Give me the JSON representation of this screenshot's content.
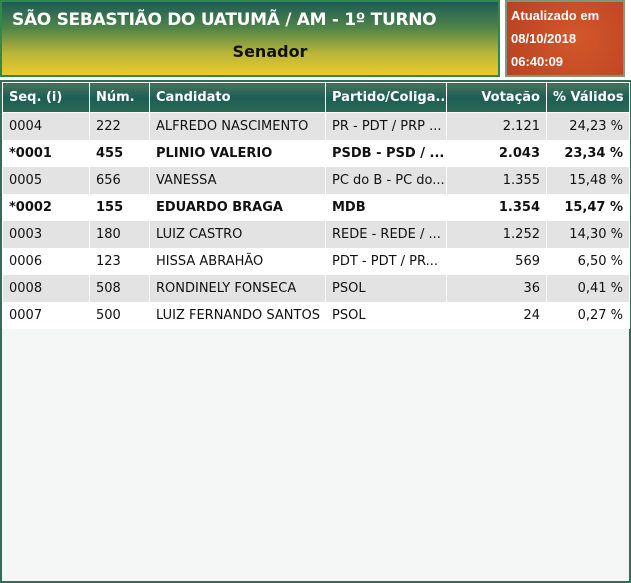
{
  "header": {
    "title": "SÃO SEBASTIÃO DO UATUMÃ / AM - 1º TURNO",
    "subtitle": "Senador"
  },
  "updated": {
    "label": "Atualizado em",
    "date": "08/10/2018",
    "time": "06:40:09"
  },
  "colors": {
    "header_bg": "#1e5e55",
    "updated_bg": "#c84c26",
    "accent_yellow": "#ecc92c"
  },
  "table": {
    "columns": [
      "Seq.   (i)",
      "Núm.",
      "Candidato",
      "Partido/Coliga...",
      "Votação",
      "% Válidos"
    ],
    "rows": [
      {
        "seq": "0004",
        "num": "222",
        "cand": "ALFREDO NASCIMENTO",
        "partido": "PR - PDT / PRP ...",
        "votos": "2.121",
        "pct": "24,23 %",
        "elected": false
      },
      {
        "seq": "*0001",
        "num": "455",
        "cand": "PLINIO VALERIO",
        "partido": "PSDB - PSD / ...",
        "votos": "2.043",
        "pct": "23,34 %",
        "elected": true
      },
      {
        "seq": "0005",
        "num": "656",
        "cand": "VANESSA",
        "partido": "PC do B - PC do...",
        "votos": "1.355",
        "pct": "15,48 %",
        "elected": false
      },
      {
        "seq": "*0002",
        "num": "155",
        "cand": "EDUARDO BRAGA",
        "partido": "MDB",
        "votos": "1.354",
        "pct": "15,47 %",
        "elected": true
      },
      {
        "seq": "0003",
        "num": "180",
        "cand": "LUIZ CASTRO",
        "partido": "REDE - REDE / ...",
        "votos": "1.252",
        "pct": "14,30 %",
        "elected": false
      },
      {
        "seq": "0006",
        "num": "123",
        "cand": "HISSA ABRAHÃO",
        "partido": "PDT - PDT / PR...",
        "votos": "569",
        "pct": "6,50 %",
        "elected": false
      },
      {
        "seq": "0008",
        "num": "508",
        "cand": "RONDINELY FONSECA",
        "partido": "PSOL",
        "votos": "36",
        "pct": "0,41 %",
        "elected": false
      },
      {
        "seq": "0007",
        "num": "500",
        "cand": "LUIZ FERNANDO SANTOS",
        "partido": "PSOL",
        "votos": "24",
        "pct": "0,27 %",
        "elected": false
      }
    ]
  }
}
